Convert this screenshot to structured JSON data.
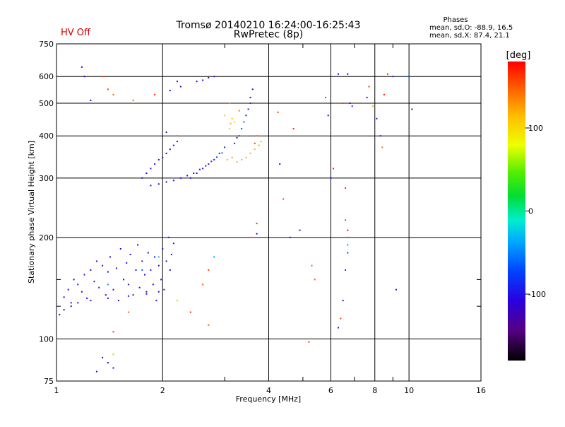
{
  "header": {
    "status": "HV Off",
    "title_line1": "Tromsø 20140210 16:24:00-16:25:43",
    "title_line2": "RwPretec (8p)",
    "phases_label": "Phases",
    "phases_o": "mean, sd,O: -88.9, 16.5",
    "phases_x": "mean, sd,X:  87.4, 21.1"
  },
  "colors": {
    "status": "#cc0000",
    "gridline": "#000000"
  },
  "chart_data": {
    "type": "scatter",
    "xlabel": "Frequency [MHz]",
    "ylabel": "Stationary phase Virtual Height [km]",
    "x_scale": "log",
    "y_scale": "log",
    "xlim": [
      1,
      16
    ],
    "ylim": [
      75,
      750
    ],
    "grid": true,
    "x_ticks": [
      1,
      2,
      4,
      6,
      8,
      10,
      16
    ],
    "x_tick_labels": [
      "1",
      "2",
      "4",
      "6",
      "8",
      "10",
      "16"
    ],
    "x_minor_ticks": [
      3,
      5,
      7,
      9
    ],
    "y_ticks": [
      75,
      100,
      200,
      300,
      400,
      500,
      600,
      750
    ],
    "y_tick_labels": [
      "75",
      "100",
      "200",
      "300",
      "400",
      "500",
      "600",
      "750"
    ],
    "y_minor_ticks": [
      125,
      150
    ],
    "colorbar": {
      "label": "[deg]",
      "range": [
        -180,
        180
      ],
      "tick_values": [
        100,
        0,
        -100
      ],
      "tick_labels": [
        "100",
        "0",
        "-100"
      ]
    },
    "series": [
      {
        "points": [
          [
            1.05,
            133,
            -120
          ],
          [
            1.08,
            140,
            -110
          ],
          [
            1.1,
            128,
            -100
          ],
          [
            1.12,
            150,
            -115
          ],
          [
            1.15,
            145,
            -105
          ],
          [
            1.18,
            138,
            -118
          ],
          [
            1.2,
            155,
            -95
          ],
          [
            1.22,
            132,
            -110
          ],
          [
            1.25,
            160,
            -120
          ],
          [
            1.28,
            148,
            -108
          ],
          [
            1.3,
            170,
            -112
          ],
          [
            1.32,
            142,
            -100
          ],
          [
            1.35,
            165,
            -125
          ],
          [
            1.38,
            135,
            -110
          ],
          [
            1.4,
            158,
            -102
          ],
          [
            1.42,
            175,
            -115
          ],
          [
            1.45,
            140,
            -98
          ],
          [
            1.48,
            162,
            -120
          ],
          [
            1.5,
            130,
            -110
          ],
          [
            1.52,
            185,
            -108
          ],
          [
            1.55,
            150,
            -118
          ],
          [
            1.58,
            168,
            -104
          ],
          [
            1.6,
            145,
            -112
          ],
          [
            1.62,
            178,
            -96
          ],
          [
            1.65,
            135,
            -122
          ],
          [
            1.68,
            160,
            -110
          ],
          [
            1.7,
            190,
            -106
          ],
          [
            1.72,
            142,
            -116
          ],
          [
            1.75,
            170,
            -100
          ],
          [
            1.78,
            155,
            -114
          ],
          [
            1.8,
            138,
            -108
          ],
          [
            1.82,
            180,
            -120
          ],
          [
            1.85,
            160,
            -98
          ],
          [
            1.88,
            145,
            -112
          ],
          [
            1.9,
            175,
            -104
          ],
          [
            1.92,
            130,
            -118
          ],
          [
            1.95,
            165,
            -110
          ],
          [
            1.98,
            150,
            -100
          ],
          [
            2.0,
            185,
            -122
          ],
          [
            2.02,
            140,
            -106
          ],
          [
            2.05,
            170,
            -114
          ],
          [
            2.08,
            200,
            -108
          ],
          [
            2.1,
            160,
            -120
          ],
          [
            2.12,
            178,
            -96
          ],
          [
            2.15,
            192,
            -110
          ],
          [
            1.02,
            118,
            -120
          ],
          [
            1.05,
            122,
            -115
          ],
          [
            1.1,
            125,
            -112
          ],
          [
            1.15,
            128,
            -110
          ],
          [
            1.25,
            130,
            -108
          ],
          [
            1.4,
            132,
            -110
          ],
          [
            1.6,
            134,
            -112
          ],
          [
            1.8,
            136,
            -108
          ],
          [
            1.95,
            138,
            -110
          ],
          [
            1.4,
            145,
            -40
          ],
          [
            1.75,
            160,
            -60
          ],
          [
            1.95,
            175,
            -30
          ],
          [
            1.75,
            300,
            -110
          ],
          [
            1.8,
            310,
            -105
          ],
          [
            1.85,
            320,
            -112
          ],
          [
            1.9,
            330,
            -100
          ],
          [
            1.95,
            340,
            -108
          ],
          [
            2.0,
            345,
            -115
          ],
          [
            2.05,
            355,
            -102
          ],
          [
            2.1,
            365,
            -110
          ],
          [
            2.15,
            375,
            -98
          ],
          [
            2.2,
            385,
            -105
          ],
          [
            1.85,
            285,
            -112
          ],
          [
            1.95,
            288,
            -108
          ],
          [
            2.05,
            292,
            -115
          ],
          [
            2.15,
            295,
            -110
          ],
          [
            2.25,
            300,
            -106
          ],
          [
            2.35,
            305,
            -112
          ],
          [
            2.45,
            310,
            -100
          ],
          [
            2.55,
            318,
            -108
          ],
          [
            2.65,
            326,
            -96
          ],
          [
            2.75,
            336,
            -80
          ],
          [
            2.85,
            346,
            -70
          ],
          [
            2.95,
            356,
            -60
          ],
          [
            2.4,
            300,
            -110
          ],
          [
            2.5,
            310,
            -105
          ],
          [
            2.6,
            320,
            -108
          ],
          [
            2.7,
            330,
            -100
          ],
          [
            2.8,
            340,
            -95
          ],
          [
            2.9,
            355,
            -90
          ],
          [
            3.0,
            370,
            -88
          ],
          [
            3.05,
            340,
            120
          ],
          [
            3.15,
            345,
            125
          ],
          [
            3.25,
            335,
            118
          ],
          [
            3.35,
            340,
            122
          ],
          [
            3.45,
            345,
            115
          ],
          [
            3.55,
            355,
            120
          ],
          [
            3.65,
            365,
            118
          ],
          [
            3.75,
            375,
            125
          ],
          [
            3.8,
            385,
            120
          ],
          [
            3.1,
            420,
            110
          ],
          [
            3.12,
            435,
            120
          ],
          [
            3.15,
            450,
            115
          ],
          [
            3.0,
            460,
            105
          ],
          [
            3.3,
            400,
            -80
          ],
          [
            3.35,
            420,
            -70
          ],
          [
            3.4,
            440,
            -60
          ],
          [
            3.45,
            460,
            -90
          ],
          [
            3.5,
            480,
            -100
          ],
          [
            3.55,
            500,
            -80
          ],
          [
            3.2,
            380,
            -130
          ],
          [
            3.25,
            395,
            -150
          ],
          [
            2.5,
            580,
            -110
          ],
          [
            2.6,
            585,
            -105
          ],
          [
            2.7,
            595,
            -100
          ],
          [
            2.8,
            600,
            -95
          ],
          [
            3.6,
            550,
            -110
          ],
          [
            3.55,
            520,
            -120
          ],
          [
            3.7,
            400,
            150
          ],
          [
            3.65,
            380,
            160
          ],
          [
            3.1,
            500,
            130
          ],
          [
            3.2,
            440,
            100
          ],
          [
            3.3,
            475,
            140
          ],
          [
            2.2,
            400,
            150
          ],
          [
            2.05,
            410,
            -110
          ],
          [
            1.65,
            510,
            145
          ],
          [
            1.9,
            530,
            170
          ],
          [
            2.1,
            545,
            -120
          ],
          [
            1.45,
            530,
            150
          ],
          [
            1.4,
            550,
            160
          ],
          [
            1.35,
            600,
            160
          ],
          [
            1.2,
            600,
            -110
          ],
          [
            1.18,
            640,
            -100
          ],
          [
            1.25,
            510,
            -110
          ],
          [
            2.25,
            560,
            -120
          ],
          [
            2.2,
            580,
            -110
          ],
          [
            4.25,
            470,
            160
          ],
          [
            4.7,
            420,
            170
          ],
          [
            4.3,
            330,
            -120
          ],
          [
            4.4,
            260,
            160
          ],
          [
            4.6,
            200,
            -110
          ],
          [
            4.9,
            210,
            -130
          ],
          [
            5.3,
            165,
            150
          ],
          [
            5.4,
            150,
            150
          ],
          [
            5.2,
            98,
            160
          ],
          [
            5.9,
            460,
            -110
          ],
          [
            6.1,
            320,
            170
          ],
          [
            6.0,
            300,
            -100
          ],
          [
            5.8,
            520,
            165
          ],
          [
            6.5,
            500,
            160
          ],
          [
            6.7,
            610,
            -110
          ],
          [
            6.3,
            610,
            -110
          ],
          [
            6.8,
            500,
            -110
          ],
          [
            6.9,
            490,
            -90
          ],
          [
            6.6,
            280,
            170
          ],
          [
            6.7,
            210,
            175
          ],
          [
            6.7,
            200,
            160
          ],
          [
            6.7,
            190,
            -40
          ],
          [
            6.7,
            180,
            -70
          ],
          [
            6.6,
            160,
            -80
          ],
          [
            6.5,
            130,
            -120
          ],
          [
            6.4,
            115,
            160
          ],
          [
            6.3,
            108,
            -100
          ],
          [
            6.6,
            225,
            165
          ],
          [
            7.6,
            520,
            -100
          ],
          [
            7.7,
            560,
            165
          ],
          [
            7.9,
            490,
            120
          ],
          [
            8.1,
            450,
            -110
          ],
          [
            8.3,
            400,
            -110
          ],
          [
            8.4,
            370,
            140
          ],
          [
            8.5,
            530,
            175
          ],
          [
            8.7,
            610,
            170
          ],
          [
            9.0,
            600,
            -80
          ],
          [
            9.2,
            140,
            -100
          ],
          [
            10.2,
            480,
            -140
          ],
          [
            10.0,
            600,
            -70
          ],
          [
            3.7,
            220,
            165
          ],
          [
            3.7,
            205,
            -110
          ],
          [
            3.6,
            200,
            150
          ],
          [
            2.8,
            175,
            -40
          ],
          [
            2.7,
            160,
            160
          ],
          [
            2.6,
            145,
            150
          ],
          [
            2.4,
            120,
            165
          ],
          [
            2.7,
            110,
            150
          ],
          [
            2.2,
            130,
            60
          ],
          [
            1.6,
            120,
            150
          ],
          [
            1.45,
            105,
            165
          ],
          [
            1.35,
            88,
            -110
          ],
          [
            1.4,
            85,
            -110
          ],
          [
            1.45,
            82,
            -110
          ],
          [
            1.3,
            80,
            -110
          ],
          [
            1.45,
            90,
            60
          ]
        ]
      }
    ]
  }
}
